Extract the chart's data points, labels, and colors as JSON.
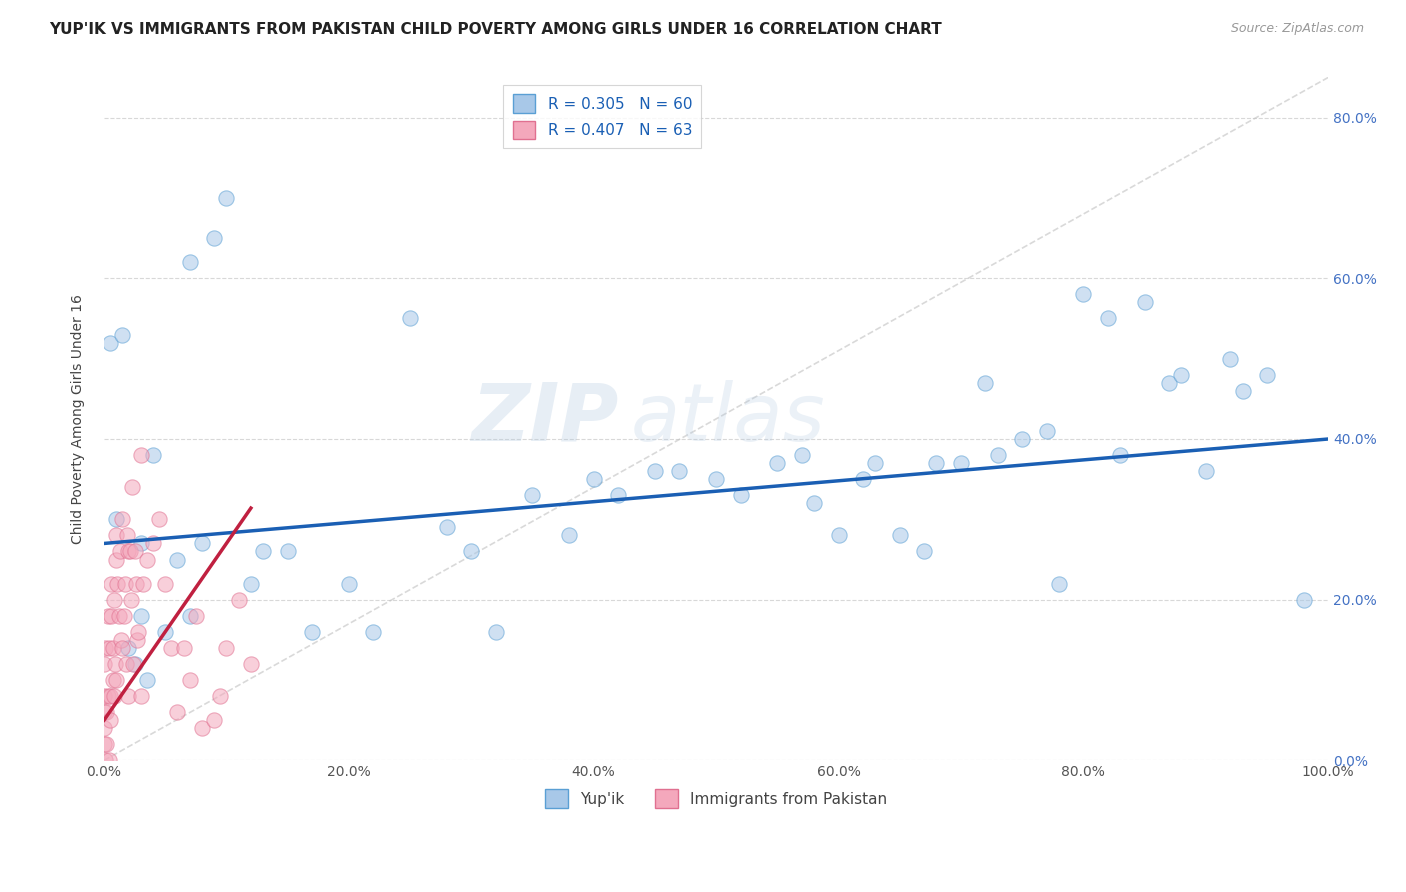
{
  "title": "YUP'IK VS IMMIGRANTS FROM PAKISTAN CHILD POVERTY AMONG GIRLS UNDER 16 CORRELATION CHART",
  "source": "Source: ZipAtlas.com",
  "ylabel": "Child Poverty Among Girls Under 16",
  "series1_name": "Yup'ik",
  "series2_name": "Immigrants from Pakistan",
  "series1_color": "#a8c8e8",
  "series2_color": "#f4a8bc",
  "series1_edge": "#5a9fd4",
  "series2_edge": "#e07090",
  "trendline1_color": "#1a5fb4",
  "trendline2_color": "#c02040",
  "refline_color": "#c0c0c0",
  "R1": 0.305,
  "N1": 60,
  "R2": 0.407,
  "N2": 63,
  "watermark_zip": "ZIP",
  "watermark_atlas": "atlas",
  "background_color": "#ffffff",
  "series1_x": [
    0.5,
    1.0,
    1.5,
    2.0,
    2.5,
    3.0,
    3.0,
    3.5,
    4.0,
    5.0,
    6.0,
    7.0,
    7.0,
    8.0,
    9.0,
    10.0,
    12.0,
    13.0,
    15.0,
    17.0,
    20.0,
    22.0,
    25.0,
    28.0,
    30.0,
    32.0,
    35.0,
    38.0,
    40.0,
    42.0,
    45.0,
    47.0,
    50.0,
    52.0,
    55.0,
    57.0,
    58.0,
    60.0,
    62.0,
    63.0,
    65.0,
    67.0,
    68.0,
    70.0,
    72.0,
    73.0,
    75.0,
    77.0,
    78.0,
    80.0,
    82.0,
    83.0,
    85.0,
    87.0,
    88.0,
    90.0,
    92.0,
    93.0,
    95.0,
    98.0
  ],
  "series1_y": [
    52.0,
    30.0,
    53.0,
    14.0,
    12.0,
    18.0,
    27.0,
    10.0,
    38.0,
    16.0,
    25.0,
    62.0,
    18.0,
    27.0,
    65.0,
    70.0,
    22.0,
    26.0,
    26.0,
    16.0,
    22.0,
    16.0,
    55.0,
    29.0,
    26.0,
    16.0,
    33.0,
    28.0,
    35.0,
    33.0,
    36.0,
    36.0,
    35.0,
    33.0,
    37.0,
    38.0,
    32.0,
    28.0,
    35.0,
    37.0,
    28.0,
    26.0,
    37.0,
    37.0,
    47.0,
    38.0,
    40.0,
    41.0,
    22.0,
    58.0,
    55.0,
    38.0,
    57.0,
    47.0,
    48.0,
    36.0,
    50.0,
    46.0,
    48.0,
    20.0
  ],
  "series2_x": [
    0.0,
    0.0,
    0.0,
    0.0,
    0.0,
    0.1,
    0.1,
    0.2,
    0.2,
    0.3,
    0.3,
    0.4,
    0.4,
    0.5,
    0.5,
    0.6,
    0.6,
    0.7,
    0.7,
    0.8,
    0.8,
    0.9,
    1.0,
    1.0,
    1.0,
    1.1,
    1.2,
    1.3,
    1.4,
    1.5,
    1.5,
    1.6,
    1.7,
    1.8,
    1.9,
    2.0,
    2.0,
    2.1,
    2.2,
    2.3,
    2.4,
    2.5,
    2.6,
    2.7,
    2.8,
    3.0,
    3.0,
    3.2,
    3.5,
    4.0,
    4.5,
    5.0,
    5.5,
    6.0,
    6.5,
    7.0,
    7.5,
    8.0,
    9.0,
    9.5,
    10.0,
    11.0,
    12.0
  ],
  "series2_y": [
    2.0,
    4.0,
    6.0,
    8.0,
    12.0,
    14.0,
    0.0,
    6.0,
    2.0,
    8.0,
    18.0,
    14.0,
    0.0,
    5.0,
    8.0,
    18.0,
    22.0,
    14.0,
    10.0,
    8.0,
    20.0,
    12.0,
    28.0,
    25.0,
    10.0,
    22.0,
    18.0,
    26.0,
    15.0,
    30.0,
    14.0,
    18.0,
    22.0,
    12.0,
    28.0,
    8.0,
    26.0,
    26.0,
    20.0,
    34.0,
    12.0,
    26.0,
    22.0,
    15.0,
    16.0,
    38.0,
    8.0,
    22.0,
    25.0,
    27.0,
    30.0,
    22.0,
    14.0,
    6.0,
    14.0,
    10.0,
    18.0,
    4.0,
    5.0,
    8.0,
    14.0,
    20.0,
    12.0
  ],
  "xlim": [
    0,
    100
  ],
  "ylim": [
    0,
    85
  ],
  "yticks": [
    0,
    20,
    40,
    60,
    80
  ],
  "xticks": [
    0,
    20,
    40,
    60,
    80,
    100
  ],
  "grid_color": "#d8d8d8",
  "title_fontsize": 11,
  "axis_label_fontsize": 10,
  "tick_fontsize": 10,
  "legend_fontsize": 11,
  "marker_size": 11,
  "marker_alpha": 0.55,
  "trendline1_lw": 2.5,
  "trendline2_lw": 2.5,
  "trendline1_intercept": 27.0,
  "trendline1_slope": 0.13,
  "trendline2_intercept": 5.0,
  "trendline2_slope": 2.2
}
